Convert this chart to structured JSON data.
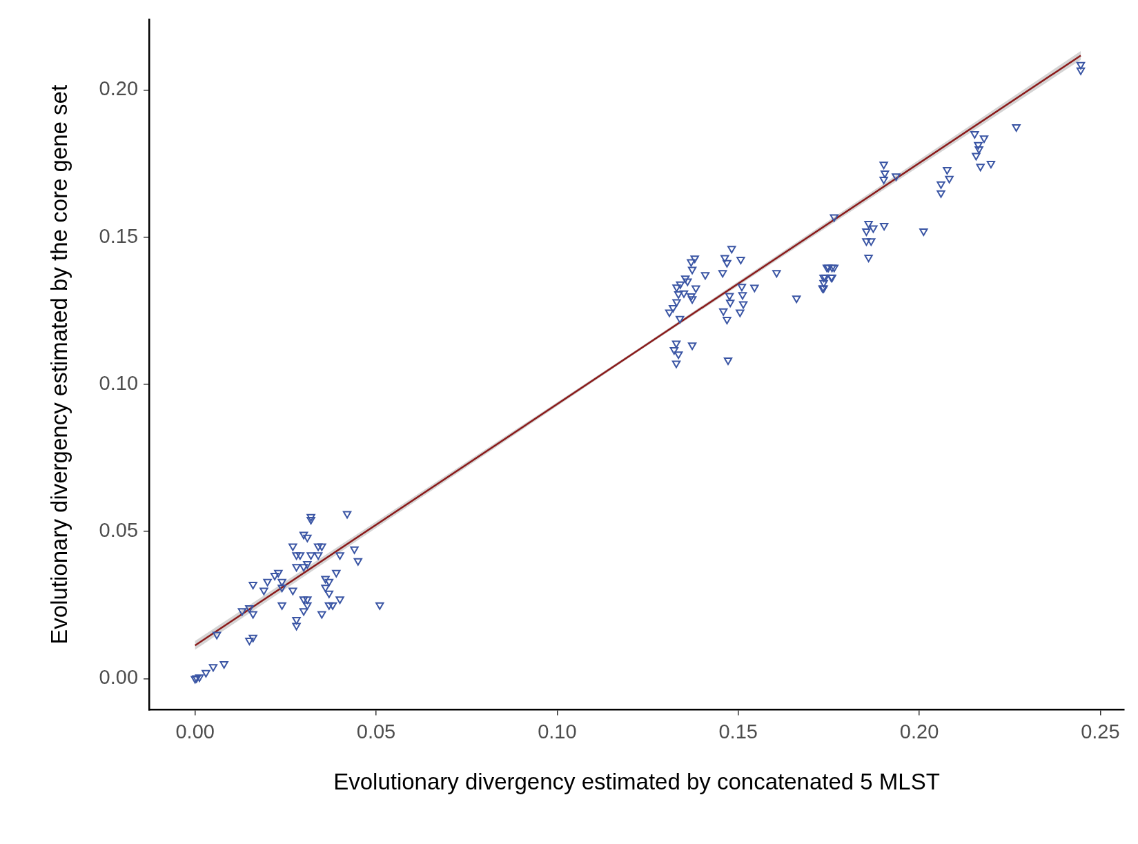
{
  "chart_data": {
    "type": "scatter",
    "xlabel": "Evolutionary divergency estimated by concatenated 5 MLST",
    "ylabel": "Evolutionary divergency estimated by the core gene set",
    "xlim": [
      -0.0127,
      0.2566
    ],
    "ylim": [
      -0.0106,
      0.224
    ],
    "xticks": [
      {
        "value": 0,
        "label": "0.00"
      },
      {
        "value": 0.05,
        "label": "0.05"
      },
      {
        "value": 0.1,
        "label": "0.10"
      },
      {
        "value": 0.15,
        "label": "0.15"
      },
      {
        "value": 0.2,
        "label": "0.20"
      },
      {
        "value": 0.25,
        "label": "0.25"
      }
    ],
    "yticks": [
      {
        "value": 0,
        "label": "0.00"
      },
      {
        "value": 0.05,
        "label": "0.05"
      },
      {
        "value": 0.1,
        "label": "0.10"
      },
      {
        "value": 0.15,
        "label": "0.15"
      },
      {
        "value": 0.2,
        "label": "0.20"
      }
    ],
    "grid": false,
    "legend": false,
    "series": [
      {
        "marker": "triangle",
        "color": "#3a55a4",
        "x": [
          0,
          0.0004,
          0.0012,
          0.003,
          0.005,
          0.008,
          0.006,
          0.015,
          0.016,
          0.013,
          0.015,
          0.016,
          0.016,
          0.019,
          0.02,
          0.022,
          0.023,
          0.024,
          0.024,
          0.027,
          0.024,
          0.028,
          0.028,
          0.027,
          0.028,
          0.029,
          0.03,
          0.031,
          0.028,
          0.03,
          0.031,
          0.032,
          0.034,
          0.035,
          0.034,
          0.032,
          0.032,
          0.03,
          0.031,
          0.03,
          0.031,
          0.035,
          0.036,
          0.037,
          0.036,
          0.037,
          0.037,
          0.038,
          0.039,
          0.04,
          0.04,
          0.042,
          0.044,
          0.045,
          0.051,
          0.131,
          0.133,
          0.1335,
          0.1354,
          0.1373,
          0.138,
          0.137,
          0.1383,
          0.1373,
          0.1409,
          0.1339,
          0.1329,
          0.1323,
          0.1335,
          0.1329,
          0.1373,
          0.132,
          0.134,
          0.135,
          0.133,
          0.136,
          0.137,
          0.1457,
          0.1463,
          0.1482,
          0.1469,
          0.1507,
          0.1476,
          0.1478,
          0.151,
          0.1512,
          0.1514,
          0.1505,
          0.1459,
          0.1469,
          0.1545,
          0.1606,
          0.1661,
          0.1472,
          0.1745,
          0.1759,
          0.1736,
          0.1736,
          0.1759,
          0.2446,
          0.2446,
          0.2268,
          0.2153,
          0.2179,
          0.2163,
          0.2165,
          0.2157,
          0.2169,
          0.2198,
          0.2077,
          0.2083,
          0.206,
          0.206,
          0.1902,
          0.1905,
          0.1902,
          0.1936,
          0.1765,
          0.186,
          0.1854,
          0.1873,
          0.1903,
          0.1854,
          0.1867,
          0.186,
          0.2012,
          0.1749,
          0.1765,
          0.174,
          0.1757,
          0.1736,
          0.1733
        ],
        "values": [
          0,
          0.0002,
          0.0005,
          0.002,
          0.004,
          0.005,
          0.015,
          0.013,
          0.014,
          0.023,
          0.024,
          0.022,
          0.032,
          0.03,
          0.033,
          0.035,
          0.036,
          0.033,
          0.031,
          0.03,
          0.025,
          0.02,
          0.018,
          0.045,
          0.042,
          0.042,
          0.049,
          0.048,
          0.038,
          0.038,
          0.039,
          0.042,
          0.045,
          0.045,
          0.042,
          0.055,
          0.054,
          0.027,
          0.025,
          0.023,
          0.027,
          0.022,
          0.034,
          0.033,
          0.031,
          0.029,
          0.025,
          0.025,
          0.036,
          0.042,
          0.027,
          0.056,
          0.044,
          0.04,
          0.025,
          0.1245,
          0.133,
          0.1307,
          0.136,
          0.139,
          0.1428,
          0.1416,
          0.1327,
          0.129,
          0.1372,
          0.1223,
          0.1139,
          0.1117,
          0.1102,
          0.1071,
          0.1133,
          0.126,
          0.134,
          0.131,
          0.128,
          0.135,
          0.13,
          0.1379,
          0.143,
          0.1461,
          0.1413,
          0.1424,
          0.1301,
          0.1278,
          0.1332,
          0.1304,
          0.1273,
          0.1245,
          0.1249,
          0.122,
          0.1329,
          0.1379,
          0.1292,
          0.1082,
          0.1397,
          0.1397,
          0.1363,
          0.1327,
          0.1363,
          0.2086,
          0.2067,
          0.1874,
          0.1851,
          0.1836,
          0.1814,
          0.1799,
          0.1777,
          0.174,
          0.175,
          0.1729,
          0.1699,
          0.168,
          0.165,
          0.1747,
          0.1717,
          0.1696,
          0.1707,
          0.1568,
          0.1546,
          0.152,
          0.1531,
          0.1539,
          0.1487,
          0.1487,
          0.1431,
          0.152,
          0.1397,
          0.1397,
          0.1364,
          0.1364,
          0.1345,
          0.1327
        ]
      },
      {
        "type": "line",
        "color": "#8b1a1a",
        "x": [
          0,
          0.1225,
          0.2446
        ],
        "values": [
          0.0113,
          0.1117,
          0.2117
        ],
        "lower": [
          0.0098,
          0.1112,
          0.2102
        ],
        "upper": [
          0.0128,
          0.1122,
          0.2132
        ]
      }
    ]
  }
}
